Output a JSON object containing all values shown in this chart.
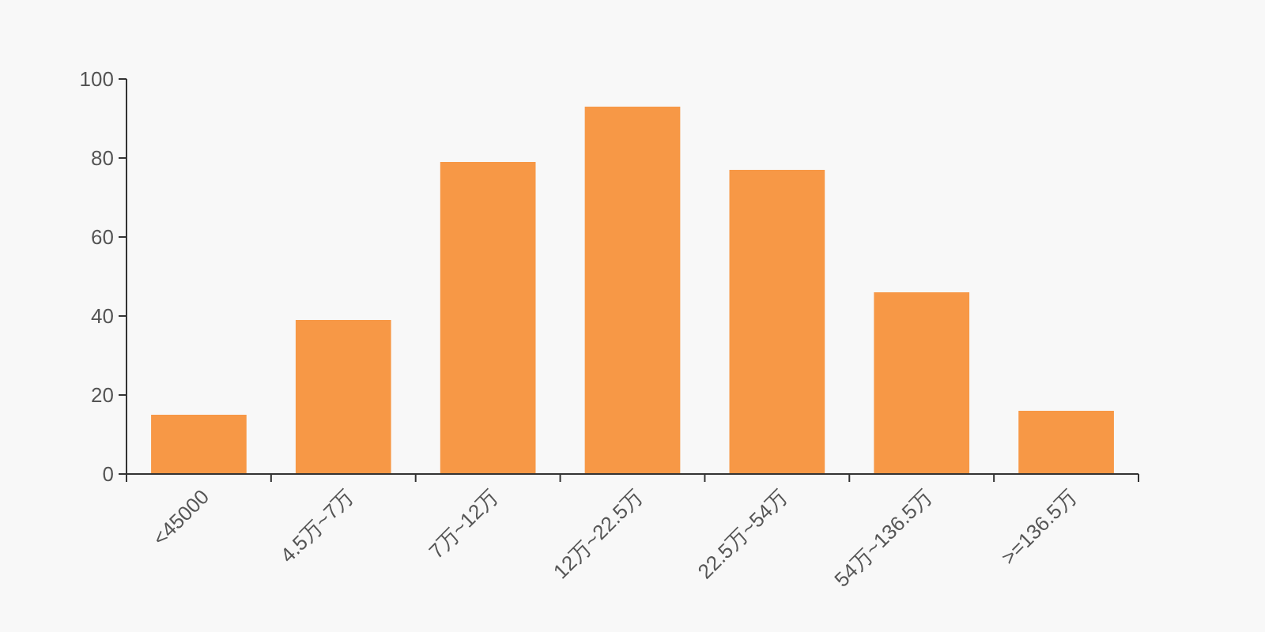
{
  "chart_data": {
    "type": "bar",
    "categories": [
      "<45000",
      "4.5万~7万",
      "7万~12万",
      "12万~22.5万",
      "22.5万~54万",
      "54万~136.5万",
      ">=136.5万"
    ],
    "values": [
      15,
      39,
      79,
      93,
      77,
      46,
      16
    ],
    "color": "#f79846",
    "ylim": [
      0,
      100
    ],
    "yticks": [
      0,
      20,
      40,
      60,
      80,
      100
    ],
    "grid": false
  }
}
